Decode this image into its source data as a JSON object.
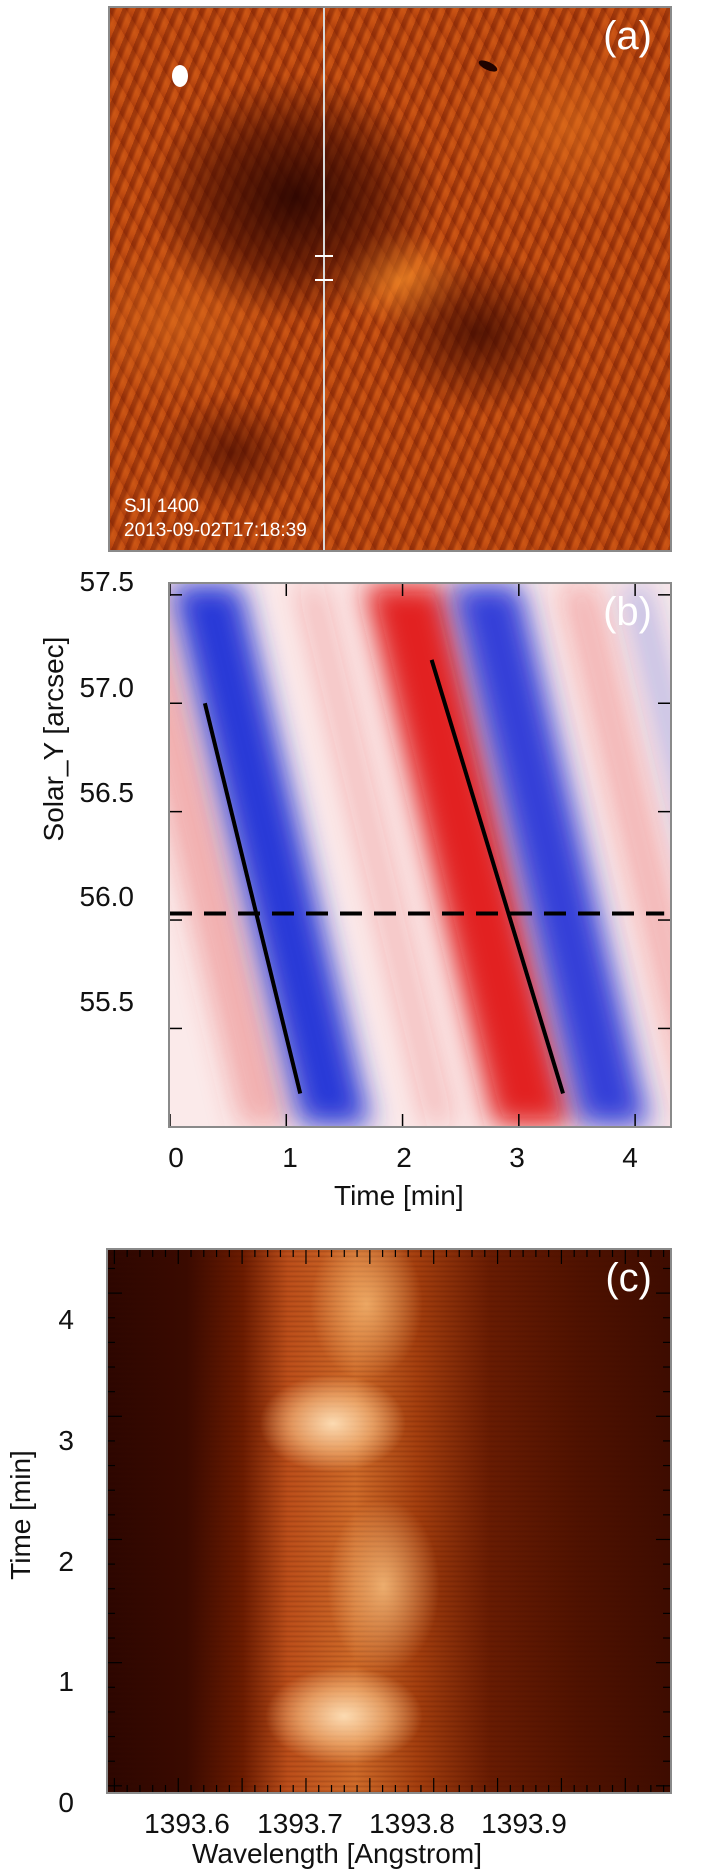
{
  "panel_a": {
    "label": "(a)",
    "instrument": "SJI 1400",
    "timestamp": "2013-09-02T17:18:39"
  },
  "panel_b": {
    "label": "(b)",
    "xlabel": "Time [min]",
    "ylabel": "Solar_Y [arcsec]",
    "xticks": [
      "0",
      "1",
      "2",
      "3",
      "4"
    ],
    "yticks": [
      "55.5",
      "56.0",
      "56.5",
      "57.0",
      "57.5"
    ]
  },
  "panel_c": {
    "label": "(c)",
    "xlabel": "Wavelength [Angstrom]",
    "ylabel": "Time [min]",
    "xticks": [
      "1393.6",
      "1393.7",
      "1393.8",
      "1393.9"
    ],
    "yticks": [
      "0",
      "1",
      "2",
      "3",
      "4"
    ]
  },
  "chart_data": [
    {
      "type": "heatmap",
      "title": "(a)",
      "annotations": [
        "SJI 1400",
        "2013-09-02T17:18:39"
      ],
      "colormap": "red-temperature"
    },
    {
      "type": "heatmap",
      "title": "(b)",
      "xlabel": "Time [min]",
      "ylabel": "Solar_Y [arcsec]",
      "xlim": [
        0,
        4.3
      ],
      "ylim": [
        55.05,
        57.55
      ],
      "colormap": "blue-white-red",
      "bands": [
        {
          "color": "#e03a3a",
          "center_at_y57": -0.05,
          "width": 0.22,
          "strength": 0.35
        },
        {
          "color": "#1f2fd6",
          "center_at_y57": 0.55,
          "width": 0.3,
          "strength": 0.95
        },
        {
          "color": "#e02020",
          "center_at_y57": 1.45,
          "width": 0.12,
          "strength": 0.25
        },
        {
          "color": "#e01818",
          "center_at_y57": 2.25,
          "width": 0.34,
          "strength": 0.95
        },
        {
          "color": "#1f2fd6",
          "center_at_y57": 2.95,
          "width": 0.3,
          "strength": 0.9
        },
        {
          "color": "#e03a3a",
          "center_at_y57": 3.75,
          "width": 0.18,
          "strength": 0.3
        },
        {
          "color": "#3040d8",
          "center_at_y57": 4.25,
          "width": 0.12,
          "strength": 0.3
        }
      ],
      "band_slope_min_per_arcsec": -0.45,
      "lines": [
        {
          "style": "solid",
          "x": [
            0.3,
            1.12
          ],
          "y": [
            57.0,
            55.2
          ]
        },
        {
          "style": "solid",
          "x": [
            2.25,
            3.38
          ],
          "y": [
            57.2,
            55.2
          ]
        },
        {
          "style": "dashed",
          "x": [
            0.0,
            4.25
          ],
          "y": [
            56.03,
            56.03
          ]
        }
      ]
    },
    {
      "type": "heatmap",
      "title": "(c)",
      "xlabel": "Wavelength [Angstrom]",
      "ylabel": "Time [min]",
      "xlim": [
        1393.545,
        1393.985
      ],
      "ylim": [
        -0.05,
        4.35
      ],
      "colormap": "red-temperature"
    }
  ]
}
